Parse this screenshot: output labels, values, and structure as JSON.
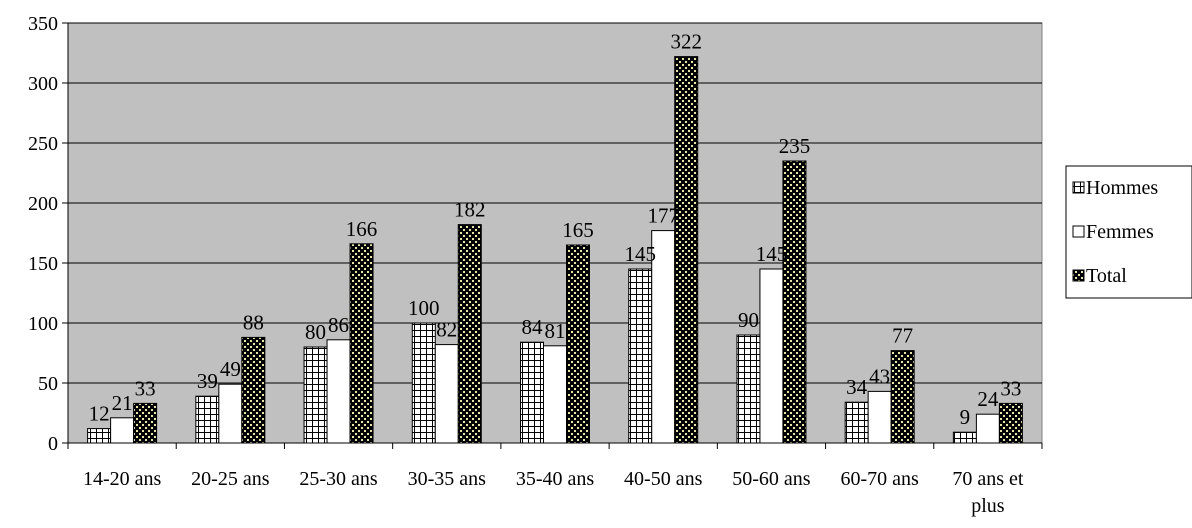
{
  "chart_data": {
    "type": "bar",
    "title": "",
    "xlabel": "",
    "ylabel": "",
    "ylim": [
      0,
      350
    ],
    "yticks": [
      0,
      50,
      100,
      150,
      200,
      250,
      300,
      350
    ],
    "grid": true,
    "legend_position": "right",
    "categories": [
      [
        "14-20 ans"
      ],
      [
        "20-25 ans"
      ],
      [
        "25-30 ans"
      ],
      [
        "30-35 ans"
      ],
      [
        "35-40 ans"
      ],
      [
        "40-50 ans"
      ],
      [
        "50-60 ans"
      ],
      [
        "60-70 ans"
      ],
      [
        "70 ans et",
        "plus"
      ]
    ],
    "series": [
      {
        "name": "Hommes",
        "values": [
          12,
          39,
          80,
          100,
          84,
          145,
          90,
          34,
          9
        ],
        "pattern": "grid"
      },
      {
        "name": "Femmes",
        "values": [
          21,
          49,
          86,
          82,
          81,
          177,
          145,
          43,
          24
        ],
        "pattern": "plain"
      },
      {
        "name": "Total",
        "values": [
          33,
          88,
          166,
          182,
          165,
          322,
          235,
          77,
          33
        ],
        "pattern": "checker"
      }
    ],
    "colors": {
      "plot_background": "#c0c0c0",
      "checker_fill": "#e8e3a8"
    }
  }
}
